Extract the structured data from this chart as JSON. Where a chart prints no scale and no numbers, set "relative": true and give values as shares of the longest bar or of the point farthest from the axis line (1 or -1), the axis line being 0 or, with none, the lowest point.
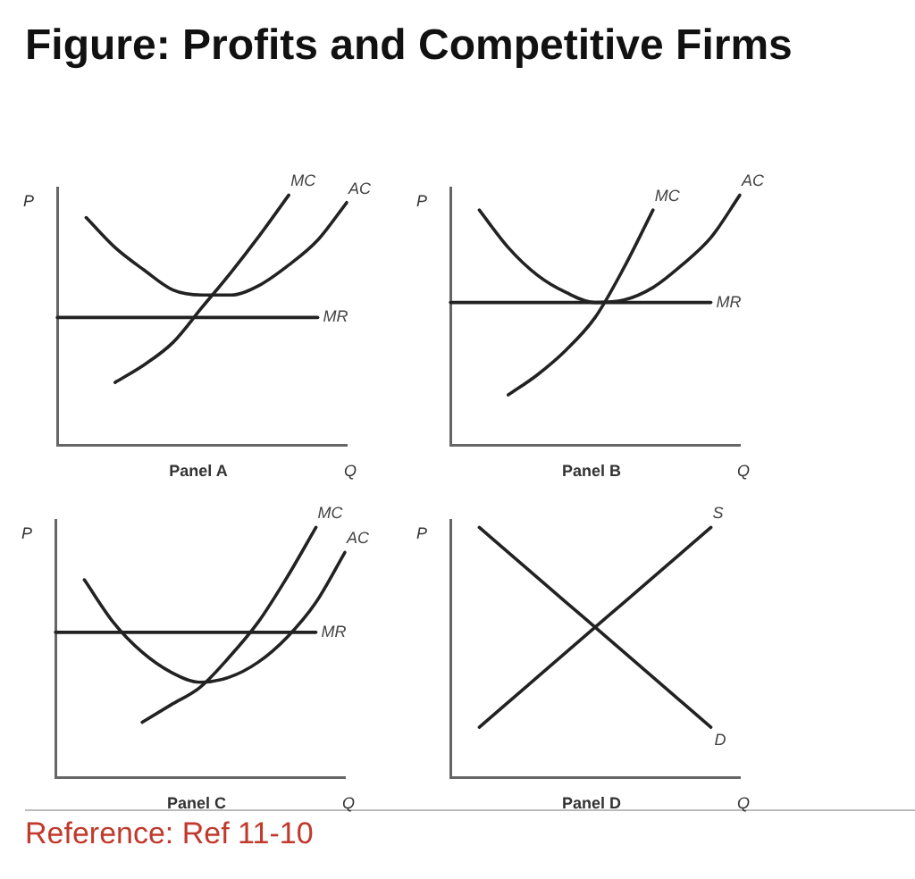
{
  "chart_data": [
    {
      "type": "other",
      "title": "Figure: Profits and Competitive Firms",
      "annotations": [
        "Reference: Ref 11-10"
      ]
    },
    {
      "type": "line",
      "title": "Panel A",
      "xlabel": "Q",
      "ylabel": "P",
      "relative": true,
      "grid": false,
      "legend": false,
      "tick_labels": false,
      "marker": "none",
      "categories": [
        null,
        null,
        null,
        null,
        null,
        null,
        null,
        null,
        null,
        null,
        null
      ],
      "series": [
        {
          "name": "MC",
          "color": "#222222",
          "values": [
            null,
            null,
            0.25,
            0.32,
            0.41,
            0.55,
            0.69,
            0.84,
            1.0,
            null,
            null
          ]
        },
        {
          "name": "AC",
          "color": "#222222",
          "values": [
            null,
            0.91,
            0.79,
            0.7,
            0.62,
            0.6,
            0.6,
            0.64,
            0.72,
            0.82,
            0.97
          ]
        },
        {
          "name": "MR",
          "color": "#222222",
          "values": [
            0.51,
            0.51,
            0.51,
            0.51,
            0.51,
            0.51,
            0.51,
            0.51,
            0.51,
            0.51,
            null
          ]
        }
      ]
    },
    {
      "type": "line",
      "title": "Panel B",
      "xlabel": "Q",
      "ylabel": "P",
      "relative": true,
      "grid": false,
      "legend": false,
      "tick_labels": false,
      "marker": "none",
      "categories": [
        null,
        null,
        null,
        null,
        null,
        null,
        null,
        null,
        null,
        null,
        null
      ],
      "series": [
        {
          "name": "MC",
          "color": "#222222",
          "values": [
            null,
            null,
            0.2,
            0.28,
            0.38,
            0.51,
            0.71,
            0.94,
            null,
            null,
            null
          ]
        },
        {
          "name": "AC",
          "color": "#222222",
          "values": [
            null,
            0.94,
            0.79,
            0.68,
            0.61,
            0.57,
            0.58,
            0.63,
            0.72,
            0.83,
            1.0
          ]
        },
        {
          "name": "MR",
          "color": "#222222",
          "values": [
            0.57,
            0.57,
            0.57,
            0.57,
            0.57,
            0.57,
            0.57,
            0.57,
            0.57,
            0.57,
            null
          ]
        }
      ]
    },
    {
      "type": "line",
      "title": "Panel C",
      "xlabel": "Q",
      "ylabel": "P",
      "relative": true,
      "grid": false,
      "legend": false,
      "tick_labels": false,
      "marker": "none",
      "categories": [
        null,
        null,
        null,
        null,
        null,
        null,
        null,
        null,
        null,
        null,
        null
      ],
      "series": [
        {
          "name": "MC",
          "color": "#222222",
          "values": [
            null,
            null,
            null,
            0.22,
            0.29,
            0.36,
            0.48,
            0.62,
            0.8,
            1.0,
            null
          ]
        },
        {
          "name": "AC",
          "color": "#222222",
          "values": [
            null,
            0.79,
            0.62,
            0.5,
            0.42,
            0.38,
            0.4,
            0.46,
            0.56,
            0.7,
            0.9
          ]
        },
        {
          "name": "MR",
          "color": "#222222",
          "values": [
            0.58,
            0.58,
            0.58,
            0.58,
            0.58,
            0.58,
            0.58,
            0.58,
            0.58,
            0.58,
            null
          ]
        }
      ]
    },
    {
      "type": "line",
      "title": "Panel D",
      "xlabel": "Q",
      "ylabel": "P",
      "relative": true,
      "grid": false,
      "legend": false,
      "tick_labels": false,
      "marker": "none",
      "categories": [
        null,
        null,
        null,
        null,
        null,
        null,
        null,
        null,
        null,
        null,
        null
      ],
      "series": [
        {
          "name": "S",
          "color": "#222222",
          "values": [
            null,
            0.2,
            0.3,
            0.4,
            0.5,
            0.6,
            0.7,
            0.8,
            0.9,
            1.0,
            null
          ]
        },
        {
          "name": "D",
          "color": "#222222",
          "values": [
            null,
            1.0,
            0.9,
            0.8,
            0.7,
            0.6,
            0.5,
            0.4,
            0.3,
            0.2,
            null
          ]
        }
      ]
    }
  ]
}
